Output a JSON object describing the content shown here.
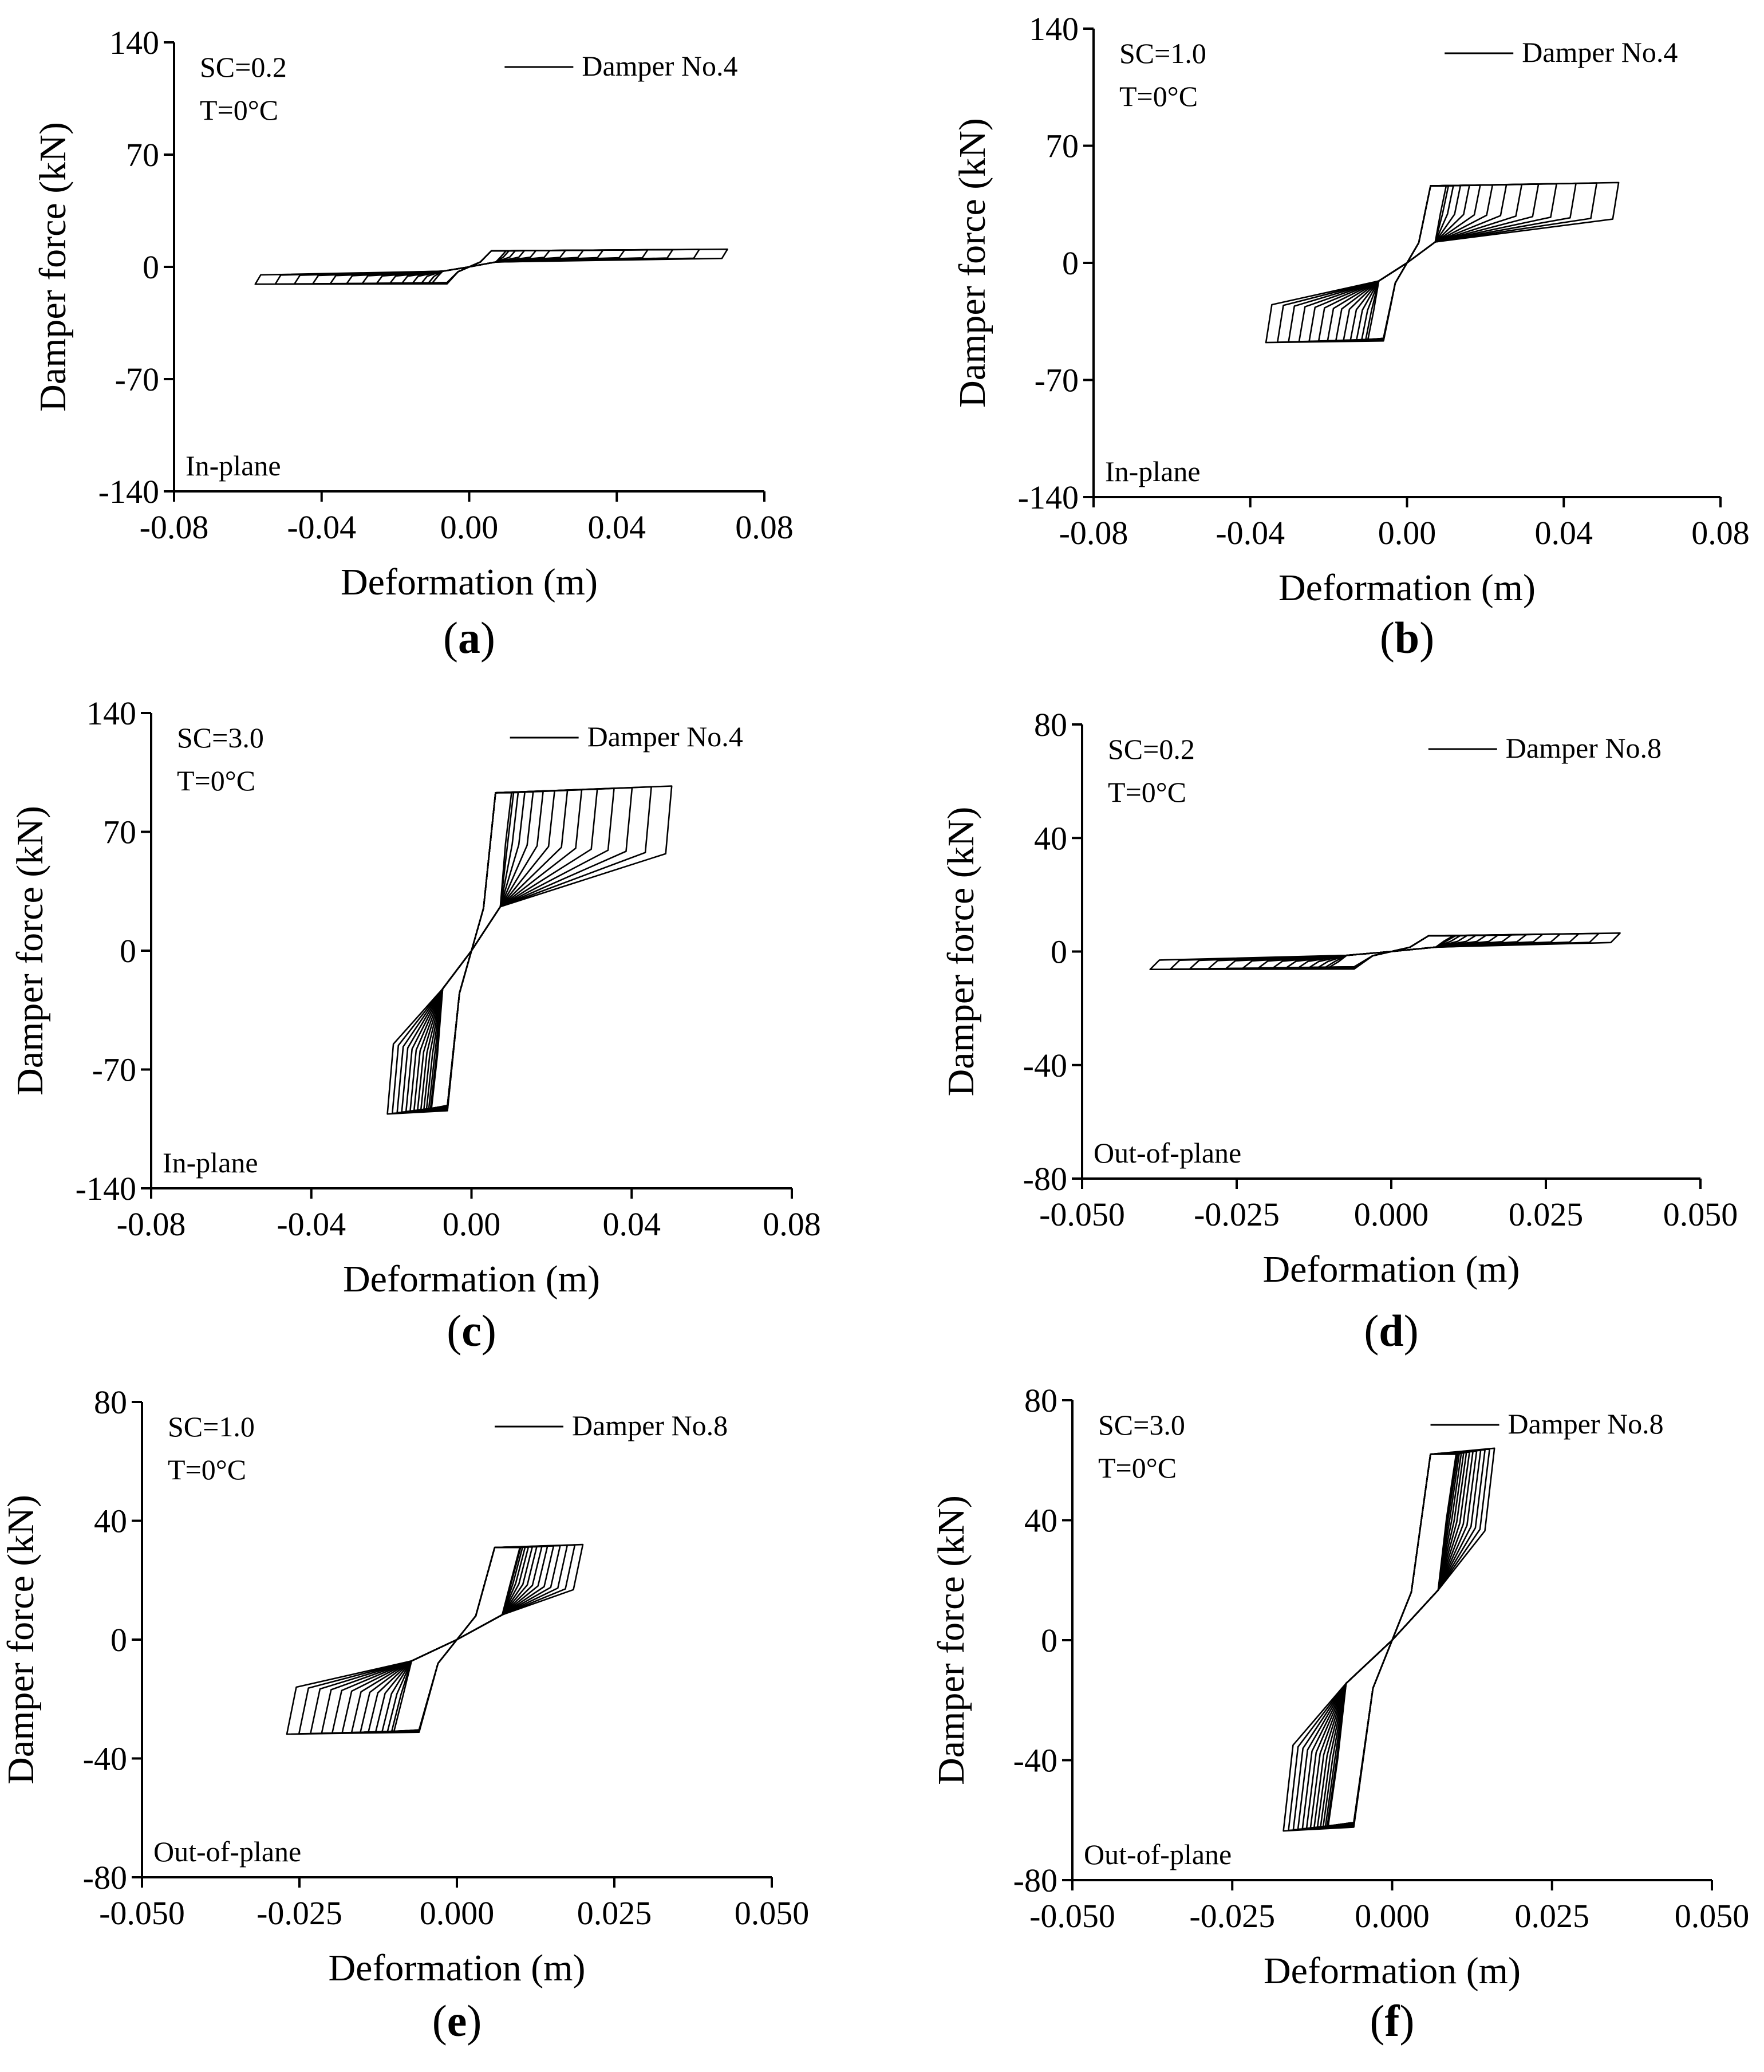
{
  "figure": {
    "subtitle_style": "multi-panel hysteresis figure"
  },
  "chart_data": [
    {
      "panel": "a",
      "type": "line",
      "caption": "a",
      "xlabel": "Deformation (m)",
      "ylabel": "Damper force (kN)",
      "xlim": [
        -0.08,
        0.08
      ],
      "ylim": [
        -140,
        140
      ],
      "xticks": [
        "-0.08",
        "-0.04",
        "0.00",
        "0.04",
        "0.08"
      ],
      "yticks": [
        "140",
        "70",
        "0",
        "-70",
        "-140"
      ],
      "xtick_values": [
        -0.08,
        -0.04,
        0.0,
        0.04,
        0.08
      ],
      "ytick_values": [
        140,
        70,
        0,
        -70,
        -140
      ],
      "sc_label": "SC=0.2",
      "temp_label": "T=0°C",
      "plane_label": "In-plane",
      "legend": [
        "Damper No.4"
      ],
      "series": [
        {
          "name": "Damper No.4",
          "x_min": -0.058,
          "x_max": 0.07,
          "x_yield": 0.006,
          "f_yield": 10,
          "f_upper_end": 11,
          "f_lower_end": 5,
          "f_cross": 3,
          "n_loops": 14
        }
      ]
    },
    {
      "panel": "b",
      "type": "line",
      "caption": "b",
      "xlabel": "Deformation (m)",
      "ylabel": "Damper force (kN)",
      "xlim": [
        -0.08,
        0.08
      ],
      "ylim": [
        -140,
        140
      ],
      "xticks": [
        "-0.08",
        "-0.04",
        "0.00",
        "0.04",
        "0.08"
      ],
      "yticks": [
        "140",
        "70",
        "0",
        "-70",
        "-140"
      ],
      "xtick_values": [
        -0.08,
        -0.04,
        0.0,
        0.04,
        0.08
      ],
      "ytick_values": [
        140,
        70,
        0,
        -70,
        -140
      ],
      "sc_label": "SC=1.0",
      "temp_label": "T=0°C",
      "plane_label": "In-plane",
      "legend": [
        "Damper No.4"
      ],
      "series": [
        {
          "name": "Damper No.4",
          "x_min": -0.036,
          "x_max": 0.054,
          "x_yield": 0.006,
          "f_yield": 46,
          "f_upper_end": 48,
          "f_lower_end": 25,
          "f_cross": 12,
          "n_loops": 14
        }
      ]
    },
    {
      "panel": "c",
      "type": "line",
      "caption": "c",
      "xlabel": "Deformation (m)",
      "ylabel": "Damper force (kN)",
      "xlim": [
        -0.08,
        0.08
      ],
      "ylim": [
        -140,
        140
      ],
      "xticks": [
        "-0.08",
        "-0.04",
        "0.00",
        "0.04",
        "0.08"
      ],
      "yticks": [
        "140",
        "70",
        "0",
        "-70",
        "-140"
      ],
      "xtick_values": [
        -0.08,
        -0.04,
        0.0,
        0.04,
        0.08
      ],
      "ytick_values": [
        140,
        70,
        0,
        -70,
        -140
      ],
      "sc_label": "SC=3.0",
      "temp_label": "T=0°C",
      "plane_label": "In-plane",
      "legend": [
        "Damper No.4"
      ],
      "series": [
        {
          "name": "Damper No.4",
          "x_min": -0.021,
          "x_max": 0.05,
          "x_yield": 0.006,
          "f_yield": 93,
          "f_upper_end": 97,
          "f_lower_end": 55,
          "f_cross": 25,
          "n_loops": 14
        }
      ]
    },
    {
      "panel": "d",
      "type": "line",
      "caption": "d",
      "xlabel": "Deformation (m)",
      "ylabel": "Damper force (kN)",
      "xlim": [
        -0.05,
        0.05
      ],
      "ylim": [
        -80,
        80
      ],
      "xticks": [
        "-0.050",
        "-0.025",
        "0.000",
        "0.025",
        "0.050"
      ],
      "yticks": [
        "80",
        "40",
        "0",
        "-40",
        "-80"
      ],
      "xtick_values": [
        -0.05,
        -0.025,
        0.0,
        0.025,
        0.05
      ],
      "ytick_values": [
        80,
        40,
        0,
        -40,
        -80
      ],
      "sc_label": "SC=0.2",
      "temp_label": "T=0°C",
      "plane_label": "Out-of-plane",
      "legend": [
        "Damper No.8"
      ],
      "series": [
        {
          "name": "Damper No.8",
          "x_min": -0.039,
          "x_max": 0.037,
          "x_yield": 0.006,
          "f_yield": 5.5,
          "f_upper_end": 6.5,
          "f_lower_end": 3,
          "f_cross": 1.5,
          "n_loops": 14
        }
      ]
    },
    {
      "panel": "e",
      "type": "line",
      "caption": "e",
      "xlabel": "Deformation (m)",
      "ylabel": "Damper force (kN)",
      "xlim": [
        -0.05,
        0.05
      ],
      "ylim": [
        -80,
        80
      ],
      "xticks": [
        "-0.050",
        "-0.025",
        "0.000",
        "0.025",
        "0.050"
      ],
      "yticks": [
        "80",
        "40",
        "0",
        "-40",
        "-80"
      ],
      "xtick_values": [
        -0.05,
        -0.025,
        0.0,
        0.025,
        0.05
      ],
      "ytick_values": [
        80,
        40,
        0,
        -40,
        -80
      ],
      "sc_label": "SC=1.0",
      "temp_label": "T=0°C",
      "plane_label": "Out-of-plane",
      "legend": [
        "Damper No.8"
      ],
      "series": [
        {
          "name": "Damper No.8",
          "x_min": -0.027,
          "x_max": 0.02,
          "x_yield": 0.006,
          "f_yield": 31,
          "f_upper_end": 32,
          "f_lower_end": 16,
          "f_cross": 8,
          "n_loops": 14
        }
      ]
    },
    {
      "panel": "f",
      "type": "line",
      "caption": "f",
      "xlabel": "Deformation (m)",
      "ylabel": "Damper force (kN)",
      "xlim": [
        -0.05,
        0.05
      ],
      "ylim": [
        -80,
        80
      ],
      "xticks": [
        "-0.050",
        "-0.025",
        "0.000",
        "0.025",
        "0.050"
      ],
      "yticks": [
        "80",
        "40",
        "0",
        "-40",
        "-80"
      ],
      "xtick_values": [
        -0.05,
        -0.025,
        0.0,
        0.025,
        0.05
      ],
      "ytick_values": [
        80,
        40,
        0,
        -40,
        -80
      ],
      "sc_label": "SC=3.0",
      "temp_label": "T=0°C",
      "plane_label": "Out-of-plane",
      "legend": [
        "Damper No.8"
      ],
      "series": [
        {
          "name": "Damper No.8",
          "x_min": -0.017,
          "x_max": 0.016,
          "x_yield": 0.006,
          "f_yield": 62,
          "f_upper_end": 64,
          "f_lower_end": 35,
          "f_cross": 16,
          "n_loops": 14
        }
      ]
    }
  ]
}
